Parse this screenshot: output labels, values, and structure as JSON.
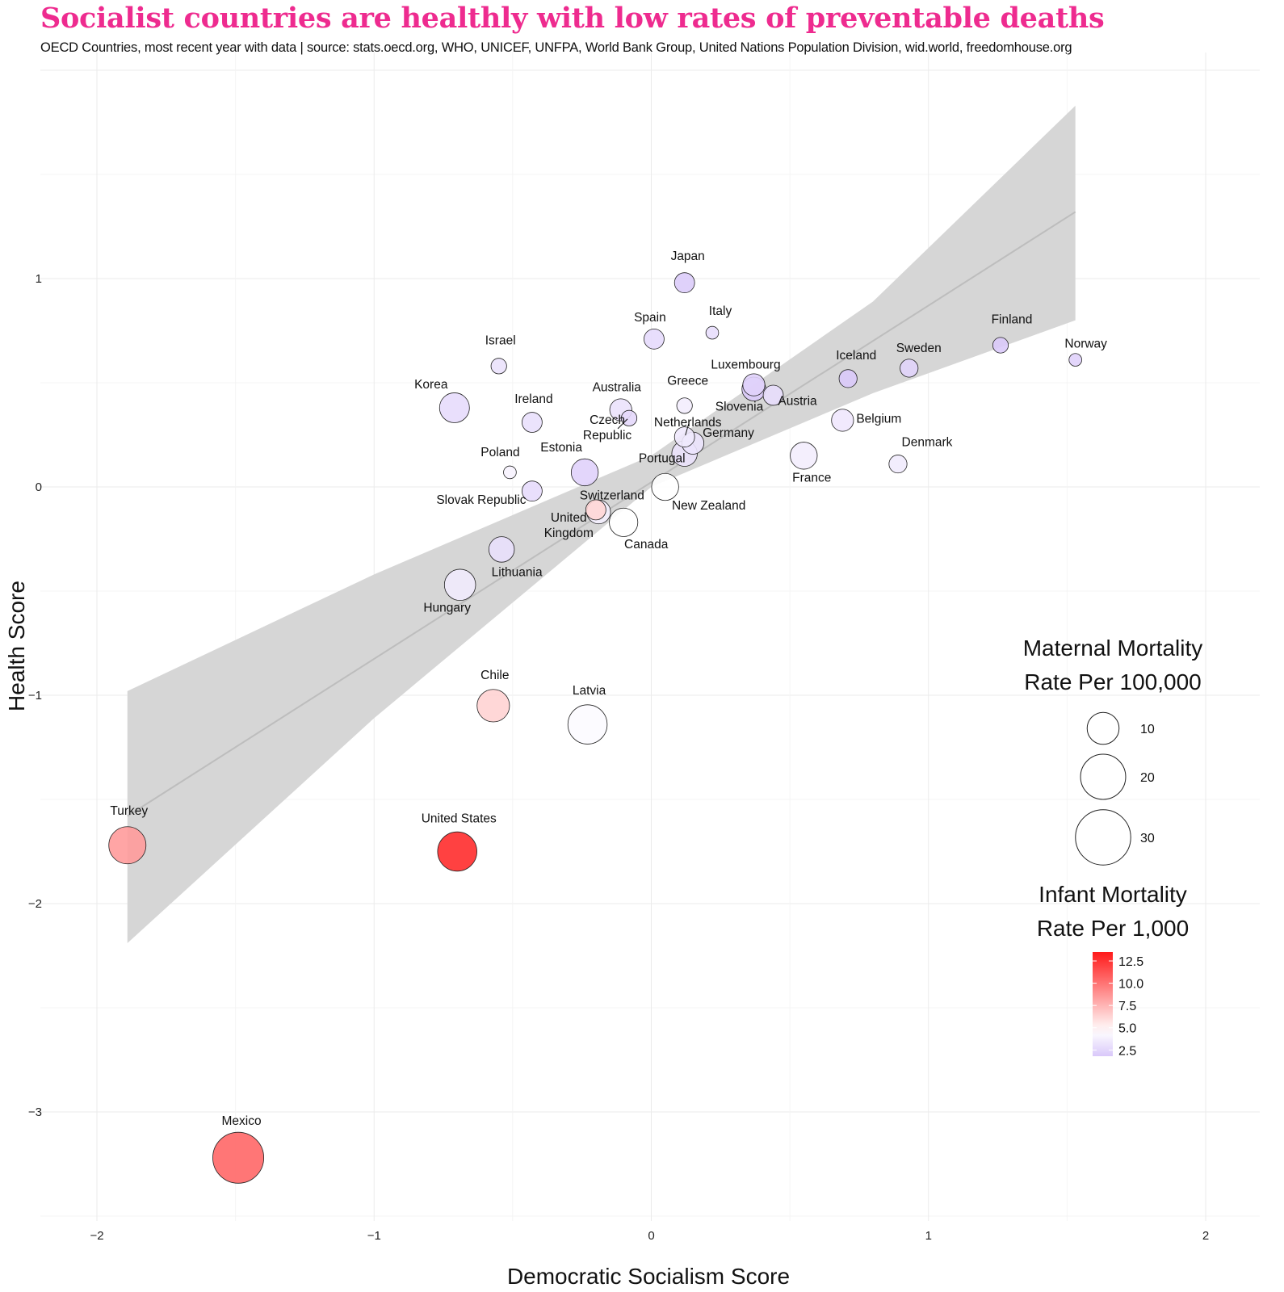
{
  "title": "Socialist countries are healthly with low rates of preventable deaths",
  "subtitle": "OECD Countries, most recent year with data | source: stats.oecd.org, WHO, UNICEF, UNFPA, World Bank Group, United Nations Population Division, wid.world, freedomhouse.org",
  "chart_data": {
    "type": "scatter",
    "xlabel": "Democratic Socialism Score",
    "ylabel": "Health Score",
    "xlim": [
      -2.2,
      2.2
    ],
    "ylim": [
      -3.45,
      2.05
    ],
    "x_ticks": [
      -2,
      -1,
      0,
      1,
      2
    ],
    "y_ticks": [
      -3,
      -2,
      -1,
      0,
      1
    ],
    "x_tick_labels": [
      "−2",
      "−1",
      "0",
      "1",
      "2"
    ],
    "y_tick_labels": [
      "−3",
      "−2",
      "−1",
      "0",
      "1"
    ],
    "trend": {
      "x": [
        -1.89,
        1.53
      ],
      "y_fit": [
        -1.58,
        1.32
      ],
      "band": {
        "x": [
          -1.89,
          -1.0,
          0.0,
          0.8,
          1.53
        ],
        "upper": [
          -0.98,
          -0.42,
          0.15,
          0.89,
          1.83
        ],
        "lower": [
          -2.19,
          -1.11,
          0.0,
          0.45,
          0.8
        ]
      }
    },
    "size_legend": {
      "title_line1": "Maternal Mortality",
      "title_line2": "Rate Per 100,000",
      "values": [
        10,
        20,
        30
      ],
      "labels": [
        "10",
        "20",
        "30"
      ]
    },
    "color_legend": {
      "title_line1": "Infant Mortality",
      "title_line2": "Rate Per 1,000",
      "ticks": [
        12.5,
        10.0,
        7.5,
        5.0,
        2.5
      ],
      "tick_labels": [
        "12.5",
        "10.0",
        "7.5",
        "5.0",
        "2.5"
      ],
      "range": [
        1.8,
        13.5
      ],
      "colors": {
        "low": "#d9c8fa",
        "mid": "#ffffff",
        "high": "#ff1a1a"
      }
    },
    "points": [
      {
        "country": "Japan",
        "x": 0.12,
        "y": 0.98,
        "maternal": 5,
        "infant": 2.0
      },
      {
        "country": "Italy",
        "x": 0.22,
        "y": 0.74,
        "maternal": 2,
        "infant": 2.9
      },
      {
        "country": "Spain",
        "x": 0.01,
        "y": 0.71,
        "maternal": 5,
        "infant": 2.7
      },
      {
        "country": "Israel",
        "x": -0.55,
        "y": 0.58,
        "maternal": 3,
        "infant": 3.1
      },
      {
        "country": "Finland",
        "x": 1.26,
        "y": 0.68,
        "maternal": 3,
        "infant": 1.9
      },
      {
        "country": "Norway",
        "x": 1.53,
        "y": 0.61,
        "maternal": 2,
        "infant": 2.3
      },
      {
        "country": "Sweden",
        "x": 0.93,
        "y": 0.57,
        "maternal": 4,
        "infant": 2.4
      },
      {
        "country": "Iceland",
        "x": 0.71,
        "y": 0.52,
        "maternal": 4,
        "infant": 1.9
      },
      {
        "country": "Luxembourg",
        "x": 0.37,
        "y": 0.49,
        "maternal": 6,
        "infant": 2.3
      },
      {
        "country": "Austria",
        "x": 0.44,
        "y": 0.44,
        "maternal": 5,
        "infant": 2.9
      },
      {
        "country": "Slovenia",
        "x": 0.37,
        "y": 0.47,
        "maternal": 7,
        "infant": 1.9
      },
      {
        "country": "Korea",
        "x": -0.71,
        "y": 0.38,
        "maternal": 11,
        "infant": 2.8
      },
      {
        "country": "Ireland",
        "x": -0.43,
        "y": 0.31,
        "maternal": 5,
        "infant": 3.0
      },
      {
        "country": "Australia",
        "x": -0.11,
        "y": 0.37,
        "maternal": 6,
        "infant": 3.1
      },
      {
        "country": "Czech Republic",
        "x": -0.08,
        "y": 0.33,
        "maternal": 3,
        "infant": 2.6
      },
      {
        "country": "Greece",
        "x": 0.12,
        "y": 0.39,
        "maternal": 3,
        "infant": 3.7
      },
      {
        "country": "Netherlands",
        "x": 0.12,
        "y": 0.24,
        "maternal": 5,
        "infant": 3.5
      },
      {
        "country": "Germany",
        "x": 0.15,
        "y": 0.21,
        "maternal": 6,
        "infant": 3.2
      },
      {
        "country": "Portugal",
        "x": 0.12,
        "y": 0.16,
        "maternal": 8,
        "infant": 3.1
      },
      {
        "country": "Belgium",
        "x": 0.69,
        "y": 0.32,
        "maternal": 6,
        "infant": 3.4
      },
      {
        "country": "France",
        "x": 0.55,
        "y": 0.15,
        "maternal": 9,
        "infant": 3.7
      },
      {
        "country": "Denmark",
        "x": 0.89,
        "y": 0.11,
        "maternal": 4,
        "infant": 3.6
      },
      {
        "country": "Poland",
        "x": -0.51,
        "y": 0.07,
        "maternal": 2,
        "infant": 4.0
      },
      {
        "country": "Estonia",
        "x": -0.24,
        "y": 0.07,
        "maternal": 9,
        "infant": 2.3
      },
      {
        "country": "Slovak Republic",
        "x": -0.43,
        "y": -0.02,
        "maternal": 5,
        "infant": 2.8
      },
      {
        "country": "New Zealand",
        "x": 0.05,
        "y": 0.0,
        "maternal": 9,
        "infant": 4.6
      },
      {
        "country": "Switzerland",
        "x": -0.2,
        "y": -0.11,
        "maternal": 5,
        "infant": 6.2
      },
      {
        "country": "United Kingdom",
        "x": -0.19,
        "y": -0.12,
        "maternal": 7,
        "infant": 3.8
      },
      {
        "country": "Canada",
        "x": -0.1,
        "y": -0.17,
        "maternal": 10,
        "infant": 4.6
      },
      {
        "country": "Lithuania",
        "x": -0.54,
        "y": -0.3,
        "maternal": 8,
        "infant": 3.0
      },
      {
        "country": "Hungary",
        "x": -0.69,
        "y": -0.47,
        "maternal": 12,
        "infant": 3.6
      },
      {
        "country": "Chile",
        "x": -0.57,
        "y": -1.05,
        "maternal": 13,
        "infant": 6.3
      },
      {
        "country": "Latvia",
        "x": -0.23,
        "y": -1.14,
        "maternal": 19,
        "infant": 4.4
      },
      {
        "country": "Turkey",
        "x": -1.89,
        "y": -1.72,
        "maternal": 17,
        "infant": 8.5
      },
      {
        "country": "United States",
        "x": -0.7,
        "y": -1.75,
        "maternal": 19,
        "infant": 12.8
      },
      {
        "country": "Mexico",
        "x": -1.49,
        "y": -3.22,
        "maternal": 32,
        "infant": 10.5
      }
    ],
    "label_text": {
      "Japan": [
        "Japan"
      ],
      "Italy": [
        "Italy"
      ],
      "Spain": [
        "Spain"
      ],
      "Israel": [
        "Israel"
      ],
      "Finland": [
        "Finland"
      ],
      "Norway": [
        "Norway"
      ],
      "Sweden": [
        "Sweden"
      ],
      "Iceland": [
        "Iceland"
      ],
      "Luxembourg": [
        "Luxembourg"
      ],
      "Austria": [
        "Austria"
      ],
      "Slovenia": [
        "Slovenia"
      ],
      "Korea": [
        "Korea"
      ],
      "Ireland": [
        "Ireland"
      ],
      "Australia": [
        "Australia"
      ],
      "Czech Republic": [
        "Czech",
        "Republic"
      ],
      "Greece": [
        "Greece"
      ],
      "Netherlands": [
        "Netherlands"
      ],
      "Germany": [
        "Germany"
      ],
      "Portugal": [
        "Portugal"
      ],
      "Belgium": [
        "Belgium"
      ],
      "France": [
        "France"
      ],
      "Denmark": [
        "Denmark"
      ],
      "Poland": [
        "Poland"
      ],
      "Estonia": [
        "Estonia"
      ],
      "Slovak Republic": [
        "Slovak Republic"
      ],
      "New Zealand": [
        "New Zealand"
      ],
      "Switzerland": [
        "Switzerland"
      ],
      "United Kingdom": [
        "United",
        "Kingdom"
      ],
      "Canada": [
        "Canada"
      ],
      "Lithuania": [
        "Lithuania"
      ],
      "Hungary": [
        "Hungary"
      ],
      "Chile": [
        "Chile"
      ],
      "Latvia": [
        "Latvia"
      ],
      "Turkey": [
        "Turkey"
      ],
      "United States": [
        "United States"
      ],
      "Mexico": [
        "Mexico"
      ]
    }
  }
}
